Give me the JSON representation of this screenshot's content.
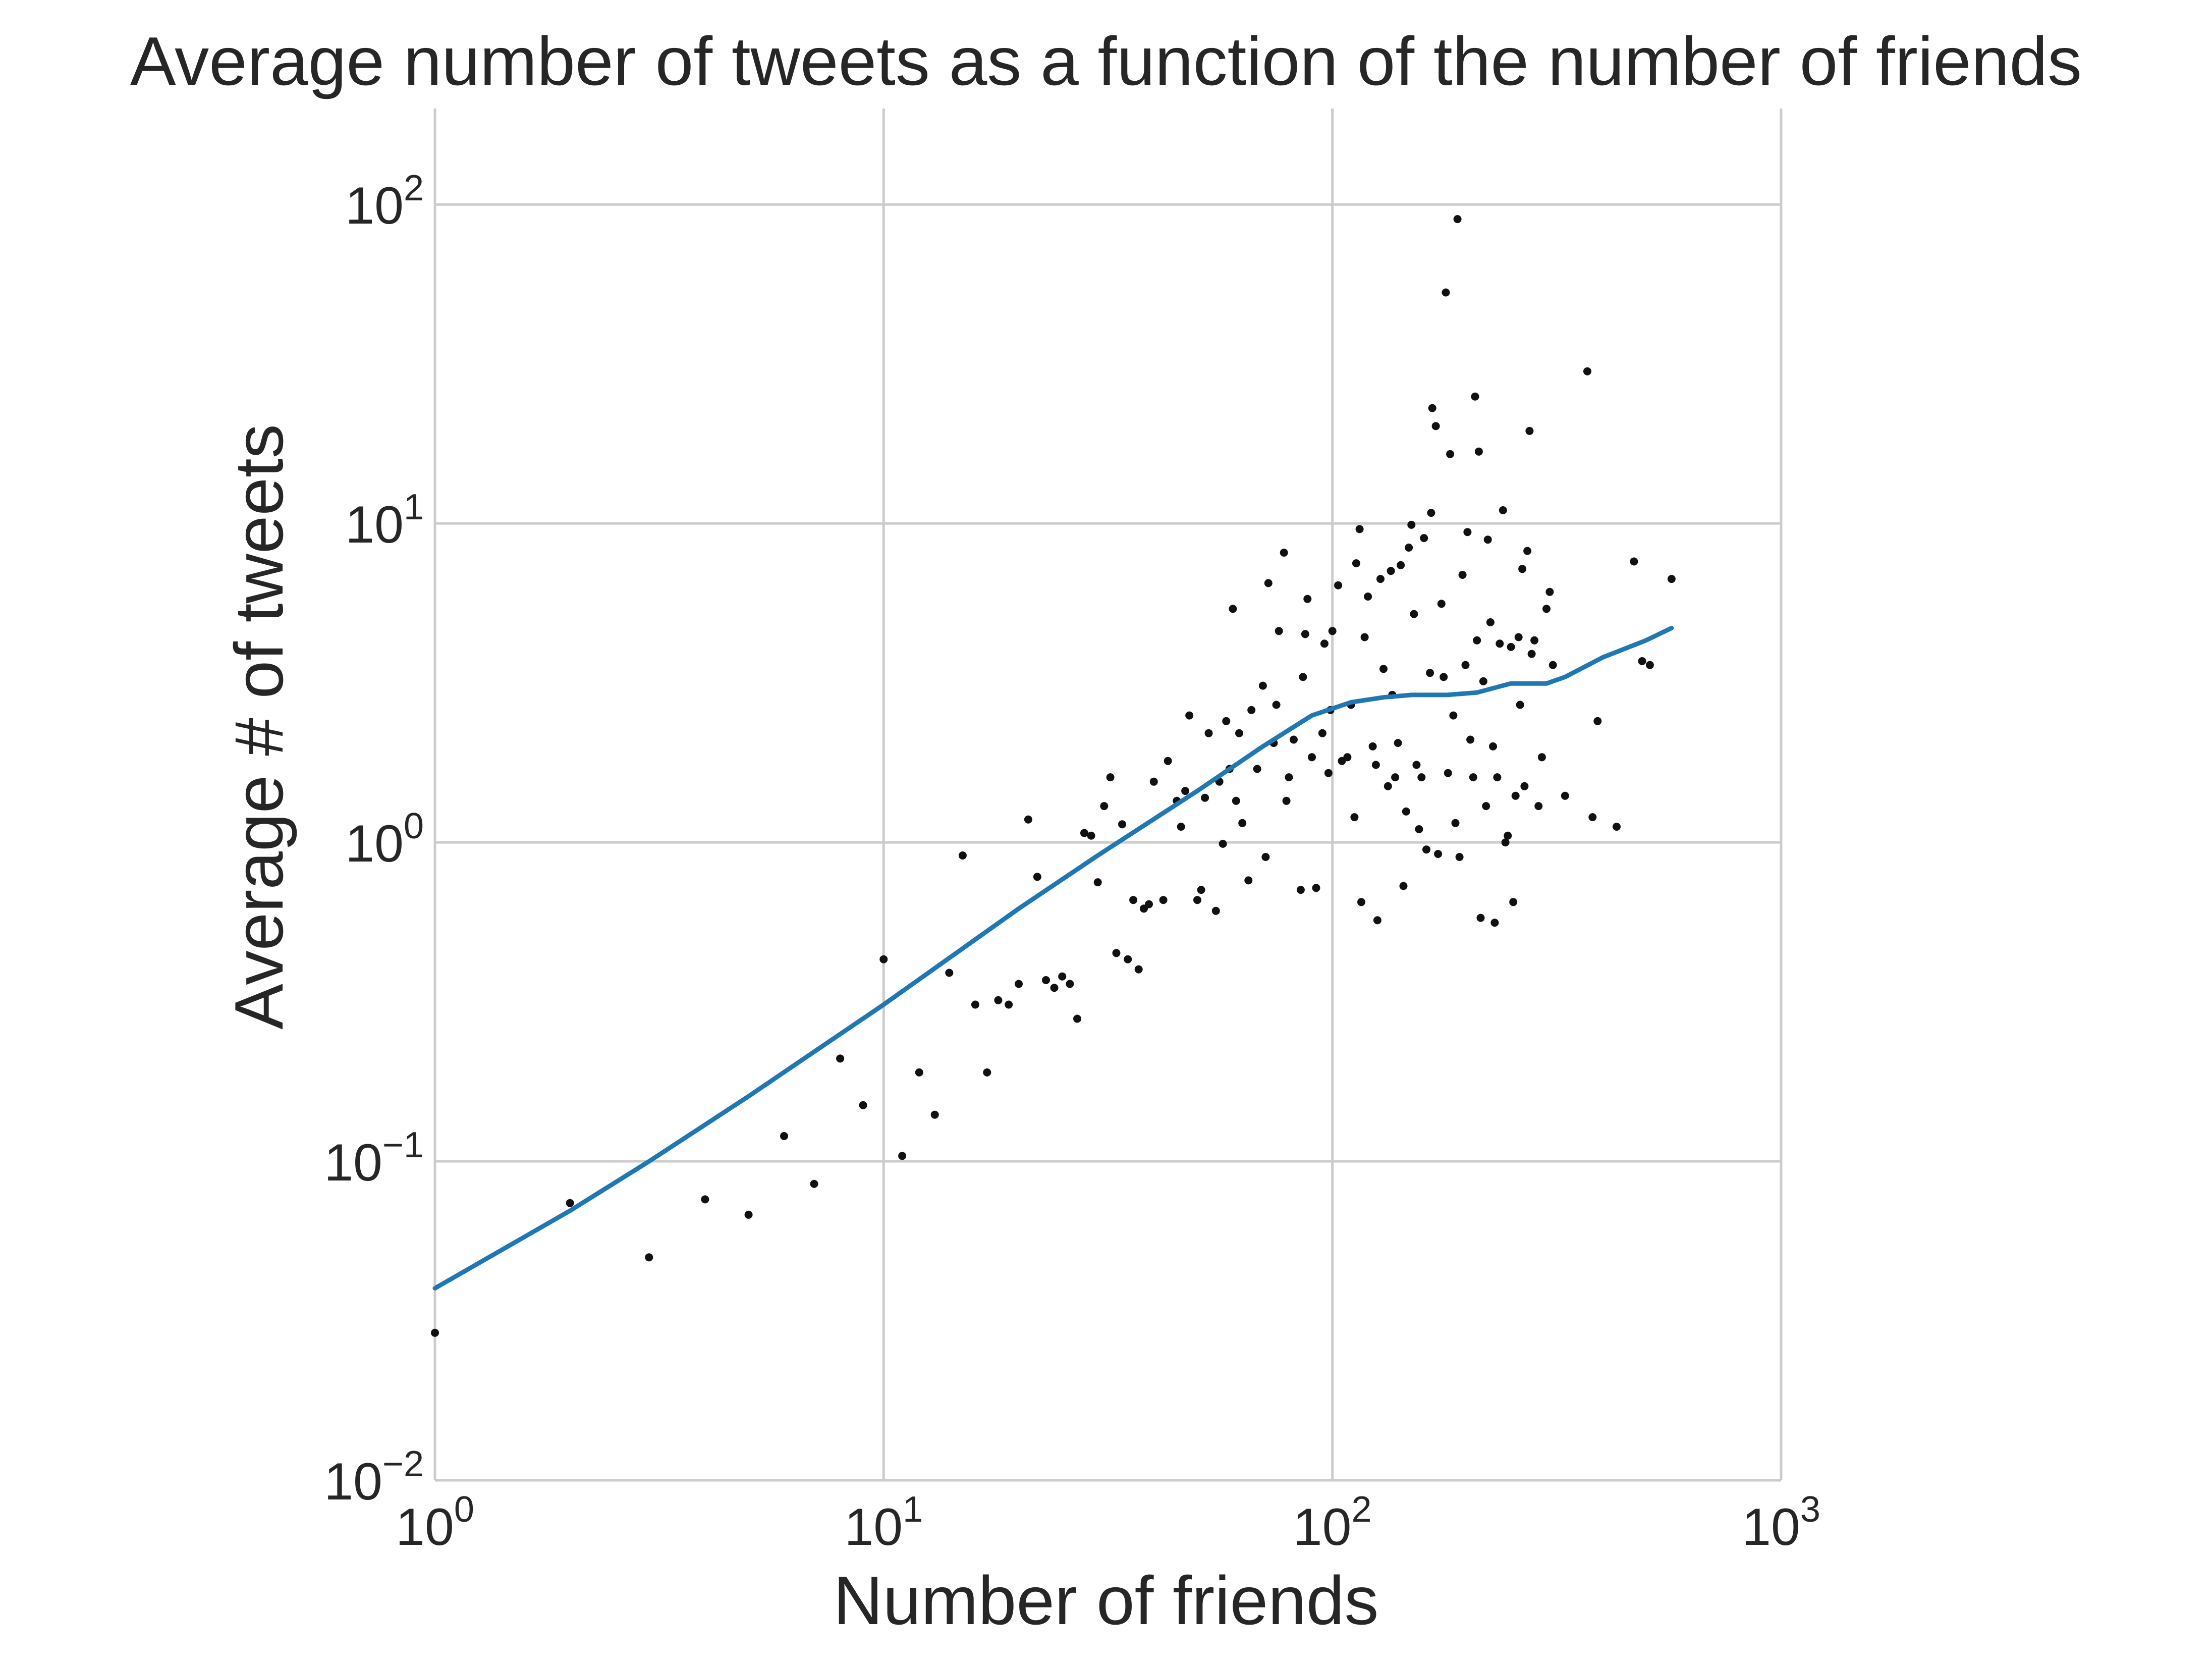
{
  "chart_data": {
    "type": "scatter",
    "title": "Average number of tweets as a function of the number of friends",
    "xlabel": "Number of friends",
    "ylabel": "Average # of tweets",
    "xscale": "log",
    "yscale": "log",
    "xlim": [
      1,
      1000
    ],
    "ylim": [
      0.01,
      200
    ],
    "grid": true,
    "x_ticks": [
      {
        "base": "10",
        "exp": "0"
      },
      {
        "base": "10",
        "exp": "1"
      },
      {
        "base": "10",
        "exp": "2"
      },
      {
        "base": "10",
        "exp": "3"
      }
    ],
    "y_ticks": [
      {
        "base": "10",
        "exp": "−2"
      },
      {
        "base": "10",
        "exp": "−1"
      },
      {
        "base": "10",
        "exp": "0"
      },
      {
        "base": "10",
        "exp": "1"
      },
      {
        "base": "10",
        "exp": "2"
      }
    ],
    "colors": {
      "points": "#111111",
      "trend": "#1f77b4",
      "grid": "#cccccc",
      "text": "#262626"
    },
    "series": [
      {
        "kind": "points",
        "points": [
          [
            1,
            0.029
          ],
          [
            2,
            0.074
          ],
          [
            3,
            0.05
          ],
          [
            4,
            0.076
          ],
          [
            5,
            0.068
          ],
          [
            6,
            0.12
          ],
          [
            7,
            0.085
          ],
          [
            8,
            0.21
          ],
          [
            9,
            0.15
          ],
          [
            10,
            0.43
          ],
          [
            11,
            0.104
          ],
          [
            12,
            0.19
          ],
          [
            13,
            0.14
          ],
          [
            14,
            0.39
          ],
          [
            15,
            0.91
          ],
          [
            16,
            0.31
          ],
          [
            17,
            0.19
          ],
          [
            18,
            0.32
          ],
          [
            19,
            0.31
          ],
          [
            20,
            0.36
          ],
          [
            21,
            1.18
          ],
          [
            22,
            0.78
          ],
          [
            23,
            0.37
          ],
          [
            24,
            0.35
          ],
          [
            25,
            0.38
          ],
          [
            26,
            0.36
          ],
          [
            27,
            0.28
          ],
          [
            28,
            1.07
          ],
          [
            29,
            1.05
          ],
          [
            30,
            0.75
          ],
          [
            31,
            1.3
          ],
          [
            32,
            1.6
          ],
          [
            33,
            0.45
          ],
          [
            34,
            1.14
          ],
          [
            35,
            0.43
          ],
          [
            36,
            0.66
          ],
          [
            37,
            0.4
          ],
          [
            38,
            0.62
          ],
          [
            39,
            0.64
          ],
          [
            40,
            1.55
          ],
          [
            42,
            0.66
          ],
          [
            43,
            1.8
          ],
          [
            45,
            1.35
          ],
          [
            46,
            1.12
          ],
          [
            47,
            1.45
          ],
          [
            48,
            2.5
          ],
          [
            50,
            0.66
          ],
          [
            51,
            0.71
          ],
          [
            52,
            1.38
          ],
          [
            53,
            2.2
          ],
          [
            55,
            0.61
          ],
          [
            56,
            1.55
          ],
          [
            57,
            0.99
          ],
          [
            58,
            2.4
          ],
          [
            59,
            1.7
          ],
          [
            60,
            5.4
          ],
          [
            61,
            1.35
          ],
          [
            62,
            2.2
          ],
          [
            63,
            1.15
          ],
          [
            65,
            0.76
          ],
          [
            66,
            2.6
          ],
          [
            68,
            1.7
          ],
          [
            70,
            3.1
          ],
          [
            71,
            0.9
          ],
          [
            72,
            6.5
          ],
          [
            74,
            2.05
          ],
          [
            75,
            2.7
          ],
          [
            76,
            4.6
          ],
          [
            78,
            8.1
          ],
          [
            79,
            1.35
          ],
          [
            80,
            1.6
          ],
          [
            82,
            2.1
          ],
          [
            85,
            0.71
          ],
          [
            86,
            3.3
          ],
          [
            87,
            4.5
          ],
          [
            88,
            5.8
          ],
          [
            90,
            1.85
          ],
          [
            92,
            0.72
          ],
          [
            95,
            2.2
          ],
          [
            96,
            4.2
          ],
          [
            98,
            1.65
          ],
          [
            99,
            2.6
          ],
          [
            100,
            4.6
          ],
          [
            103,
            6.4
          ],
          [
            105,
            1.8
          ],
          [
            108,
            1.85
          ],
          [
            110,
            2.7
          ],
          [
            112,
            1.2
          ],
          [
            113,
            7.5
          ],
          [
            115,
            9.6
          ],
          [
            116,
            0.65
          ],
          [
            118,
            4.4
          ],
          [
            120,
            5.9
          ],
          [
            123,
            2.0
          ],
          [
            125,
            1.75
          ],
          [
            126,
            0.57
          ],
          [
            128,
            6.7
          ],
          [
            130,
            3.5
          ],
          [
            133,
            1.5
          ],
          [
            135,
            7.1
          ],
          [
            136,
            2.9
          ],
          [
            138,
            1.6
          ],
          [
            140,
            2.05
          ],
          [
            142,
            7.4
          ],
          [
            144,
            0.73
          ],
          [
            146,
            1.25
          ],
          [
            148,
            8.4
          ],
          [
            150,
            9.9
          ],
          [
            152,
            5.2
          ],
          [
            154,
            1.75
          ],
          [
            156,
            1.1
          ],
          [
            158,
            1.6
          ],
          [
            160,
            9.0
          ],
          [
            162,
            0.95
          ],
          [
            165,
            3.4
          ],
          [
            166,
            10.8
          ],
          [
            167,
            23.0
          ],
          [
            170,
            20.2
          ],
          [
            172,
            0.92
          ],
          [
            175,
            5.6
          ],
          [
            177,
            3.3
          ],
          [
            179,
            53.0
          ],
          [
            181,
            1.65
          ],
          [
            183,
            16.5
          ],
          [
            186,
            2.5
          ],
          [
            188,
            1.15
          ],
          [
            190,
            90.0
          ],
          [
            192,
            0.9
          ],
          [
            195,
            6.9
          ],
          [
            198,
            3.6
          ],
          [
            200,
            9.4
          ],
          [
            203,
            2.1
          ],
          [
            206,
            1.6
          ],
          [
            208,
            25.0
          ],
          [
            210,
            4.3
          ],
          [
            212,
            16.8
          ],
          [
            214,
            0.58
          ],
          [
            217,
            3.2
          ],
          [
            220,
            1.3
          ],
          [
            222,
            8.9
          ],
          [
            225,
            4.9
          ],
          [
            228,
            2.0
          ],
          [
            230,
            0.56
          ],
          [
            233,
            1.6
          ],
          [
            236,
            4.2
          ],
          [
            240,
            11.0
          ],
          [
            243,
            1.0
          ],
          [
            246,
            1.05
          ],
          [
            250,
            4.1
          ],
          [
            253,
            0.65
          ],
          [
            256,
            1.4
          ],
          [
            260,
            4.4
          ],
          [
            262,
            2.7
          ],
          [
            265,
            7.2
          ],
          [
            268,
            1.5
          ],
          [
            272,
            8.2
          ],
          [
            275,
            19.5
          ],
          [
            278,
            3.9
          ],
          [
            282,
            4.3
          ],
          [
            288,
            1.3
          ],
          [
            293,
            1.85
          ],
          [
            300,
            5.4
          ],
          [
            305,
            6.1
          ],
          [
            310,
            3.6
          ],
          [
            330,
            1.4
          ],
          [
            370,
            30.0
          ],
          [
            380,
            1.2
          ],
          [
            390,
            2.4
          ],
          [
            430,
            1.12
          ],
          [
            470,
            7.6
          ],
          [
            490,
            3.7
          ],
          [
            510,
            3.6
          ],
          [
            570,
            6.7
          ]
        ]
      },
      {
        "kind": "smoothed trend",
        "points": [
          [
            1,
            0.04
          ],
          [
            2,
            0.07
          ],
          [
            3,
            0.1
          ],
          [
            5,
            0.16
          ],
          [
            10,
            0.31
          ],
          [
            20,
            0.62
          ],
          [
            30,
            0.91
          ],
          [
            50,
            1.45
          ],
          [
            70,
            2.0
          ],
          [
            90,
            2.5
          ],
          [
            110,
            2.75
          ],
          [
            130,
            2.85
          ],
          [
            150,
            2.9
          ],
          [
            180,
            2.9
          ],
          [
            210,
            2.95
          ],
          [
            250,
            3.15
          ],
          [
            300,
            3.15
          ],
          [
            330,
            3.3
          ],
          [
            400,
            3.8
          ],
          [
            500,
            4.3
          ],
          [
            570,
            4.7
          ]
        ]
      }
    ]
  }
}
